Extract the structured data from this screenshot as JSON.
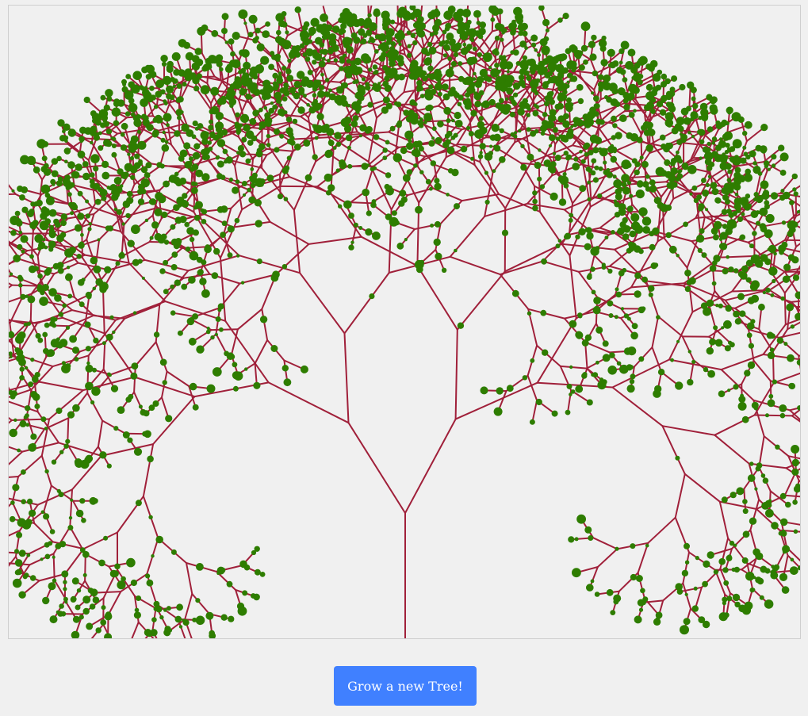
{
  "canvas": {
    "background": "#f0f0f0",
    "branch_color": "#a0203a",
    "leaf_color": "#2e7d00"
  },
  "tree": {
    "depth": 10,
    "branch_angle_deg": 32,
    "length_ratio": 0.84
  },
  "actions": {
    "grow_label": "Grow a new Tree!"
  }
}
